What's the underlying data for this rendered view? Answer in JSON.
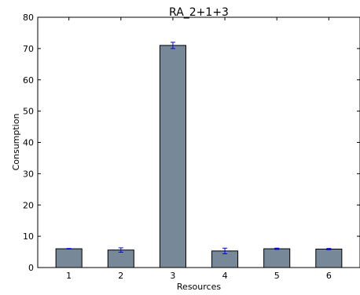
{
  "chart_data": {
    "type": "bar",
    "title": "RA_2+1+3",
    "xlabel": "Resources",
    "ylabel": "Consumption",
    "categories": [
      "1",
      "2",
      "3",
      "4",
      "5",
      "6"
    ],
    "values": [
      6.0,
      5.6,
      71.0,
      5.3,
      6.0,
      5.9
    ],
    "errors": [
      0.1,
      0.7,
      1.0,
      0.9,
      0.2,
      0.2
    ],
    "ylim": [
      0,
      80
    ],
    "yticks": [
      0,
      10,
      20,
      30,
      40,
      50,
      60,
      70,
      80
    ],
    "grid": false,
    "legend": "none",
    "colors": {
      "bar_fill": "#778899",
      "bar_edge": "#000000",
      "error_bar": "#0000ff",
      "axis": "#000000"
    }
  }
}
